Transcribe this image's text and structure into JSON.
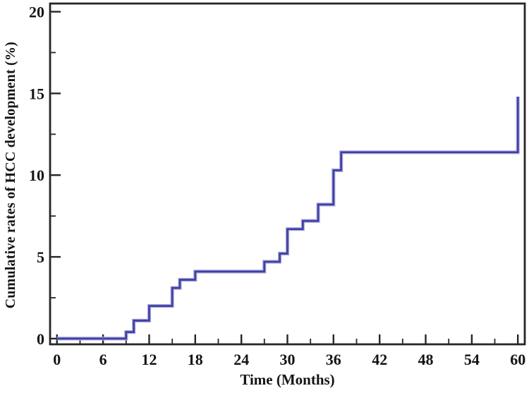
{
  "figure": {
    "background": "#ffffff"
  },
  "chart_data": {
    "type": "line",
    "subtype": "step-after",
    "title": "",
    "xlabel": "Time (Months)",
    "ylabel": "Cumulative rates of HCC development (%)",
    "x": [
      0,
      9,
      10,
      12,
      15,
      16,
      18,
      27,
      29,
      30,
      32,
      34,
      36,
      37,
      60
    ],
    "y": [
      0,
      0.4,
      1.1,
      2.0,
      3.1,
      3.6,
      4.1,
      4.7,
      5.2,
      6.7,
      7.2,
      8.2,
      10.3,
      11.4,
      14.8
    ],
    "xlim": [
      -0.9,
      60.9
    ],
    "ylim": [
      -0.35,
      20.5
    ],
    "x_major_ticks": [
      0,
      6,
      12,
      18,
      24,
      30,
      36,
      42,
      48,
      54,
      60
    ],
    "x_minor_ticks": [
      3,
      9,
      15,
      21,
      27,
      33,
      39,
      45,
      51,
      57
    ],
    "y_major_ticks": [
      0,
      5,
      10,
      15,
      20
    ],
    "y_minor_ticks": [
      2.5,
      7.5,
      12.5,
      17.5
    ],
    "grid": false,
    "legend": "none",
    "frame": "box",
    "colors": {
      "curve": "#3f3fa4",
      "curve_halo": "#aaaadd",
      "axis": "#262626",
      "text": "#141414"
    }
  }
}
